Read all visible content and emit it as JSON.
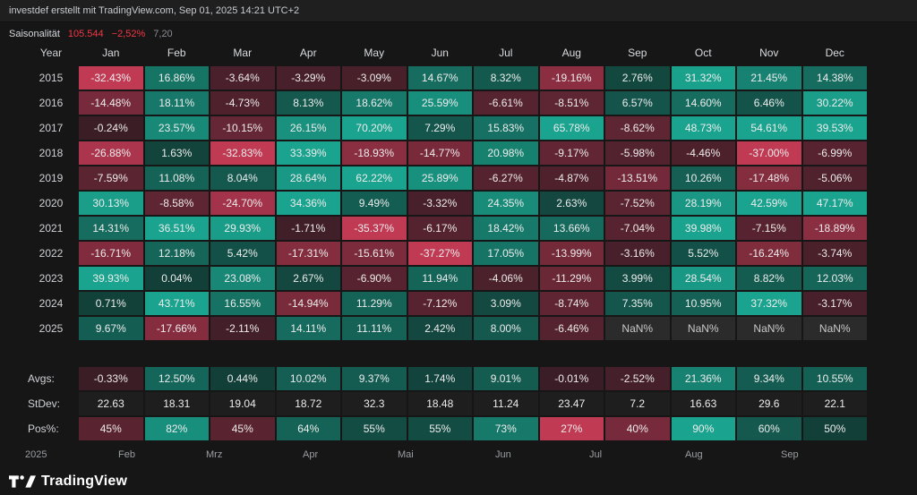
{
  "topbar": {
    "attribution": "investdef erstellt mit TradingView.com, Sep 01, 2025 14:21 UTC+2"
  },
  "legend": {
    "title": "Saisonalität",
    "value": "105.544",
    "change": "−2,52%",
    "extra": "7,20"
  },
  "chart_data": {
    "type": "heatmap",
    "title": "Saisonalität",
    "columns": [
      "Year",
      "Jan",
      "Feb",
      "Mar",
      "Apr",
      "May",
      "Jun",
      "Jul",
      "Aug",
      "Sep",
      "Oct",
      "Nov",
      "Dec"
    ],
    "rows": [
      {
        "year": "2015",
        "values": [
          -32.43,
          16.86,
          -3.64,
          -3.29,
          -3.09,
          14.67,
          8.32,
          -19.16,
          2.76,
          31.32,
          21.45,
          14.38
        ]
      },
      {
        "year": "2016",
        "values": [
          -14.48,
          18.11,
          -4.73,
          8.13,
          18.62,
          25.59,
          -6.61,
          -8.51,
          6.57,
          14.6,
          6.46,
          30.22
        ]
      },
      {
        "year": "2017",
        "values": [
          -0.24,
          23.57,
          -10.15,
          26.15,
          70.2,
          7.29,
          15.83,
          65.78,
          -8.62,
          48.73,
          54.61,
          39.53
        ]
      },
      {
        "year": "2018",
        "values": [
          -26.88,
          1.63,
          -32.83,
          33.39,
          -18.93,
          -14.77,
          20.98,
          -9.17,
          -5.98,
          -4.46,
          -37.0,
          -6.99
        ]
      },
      {
        "year": "2019",
        "values": [
          -7.59,
          11.08,
          8.04,
          28.64,
          62.22,
          25.89,
          -6.27,
          -4.87,
          -13.51,
          10.26,
          -17.48,
          -5.06
        ]
      },
      {
        "year": "2020",
        "values": [
          30.13,
          -8.58,
          -24.7,
          34.36,
          9.49,
          -3.32,
          24.35,
          2.63,
          -7.52,
          28.19,
          42.59,
          47.17
        ]
      },
      {
        "year": "2021",
        "values": [
          14.31,
          36.51,
          29.93,
          -1.71,
          -35.37,
          -6.17,
          18.42,
          13.66,
          -7.04,
          39.98,
          -7.15,
          -18.89
        ]
      },
      {
        "year": "2022",
        "values": [
          -16.71,
          12.18,
          5.42,
          -17.31,
          -15.61,
          -37.27,
          17.05,
          -13.99,
          -3.16,
          5.52,
          -16.24,
          -3.74
        ]
      },
      {
        "year": "2023",
        "values": [
          39.93,
          0.04,
          23.08,
          2.67,
          -6.9,
          11.94,
          -4.06,
          -11.29,
          3.99,
          28.54,
          8.82,
          12.03
        ]
      },
      {
        "year": "2024",
        "values": [
          0.71,
          43.71,
          16.55,
          -14.94,
          11.29,
          -7.12,
          3.09,
          -8.74,
          7.35,
          10.95,
          37.32,
          -3.17
        ]
      },
      {
        "year": "2025",
        "values": [
          9.67,
          -17.66,
          -2.11,
          14.11,
          11.11,
          2.42,
          8.0,
          -6.46,
          null,
          null,
          null,
          null
        ]
      }
    ],
    "nan_label": "NaN%",
    "summary": {
      "avgs_label": "Avgs:",
      "avgs": [
        -0.33,
        12.5,
        0.44,
        10.02,
        9.37,
        1.74,
        9.01,
        -0.01,
        -2.52,
        21.36,
        9.34,
        10.55
      ],
      "stdev_label": "StDev:",
      "stdev": [
        "22.63",
        "18.31",
        "19.04",
        "18.72",
        "32.3",
        "18.48",
        "11.24",
        "23.47",
        "7.2",
        "16.63",
        "29.6",
        "22.1"
      ],
      "pos_label": "Pos%:",
      "pos": [
        45,
        82,
        45,
        64,
        55,
        55,
        73,
        27,
        40,
        90,
        60,
        50
      ]
    }
  },
  "axis": {
    "labels": [
      "2025",
      "Feb",
      "Mrz",
      "Apr",
      "Mai",
      "Jun",
      "Jul",
      "Aug",
      "Sep"
    ]
  },
  "footer": {
    "brand": "TradingView"
  },
  "colors": {
    "positive_strong": "#1aa38e",
    "positive_weak": "#123f38",
    "negative_strong": "#c13a54",
    "negative_weak": "#3a1d26",
    "nan_cell": "#2b2b2b",
    "nan_text": "#c9c9c9",
    "stdev_cell": "#1e1e1e",
    "legend_red": "#f23645",
    "legend_muted": "#8b8d94"
  }
}
